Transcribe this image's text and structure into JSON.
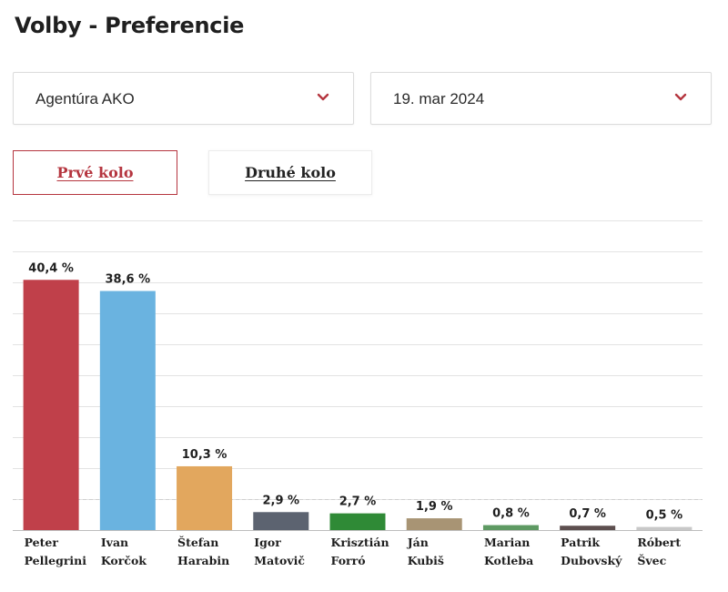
{
  "page": {
    "title": "Volby - Preferencie"
  },
  "filters": {
    "agency": {
      "value": "Agentúra AKO",
      "icon": "chevron-down-icon"
    },
    "date": {
      "value": "19. mar 2024",
      "icon": "chevron-down-icon"
    }
  },
  "tabs": [
    {
      "label": "Prvé kolo",
      "active": true
    },
    {
      "label": "Druhé kolo",
      "active": false
    }
  ],
  "colors": {
    "accent": "#b5353f"
  },
  "chart_data": {
    "type": "bar",
    "categories": [
      [
        "Peter",
        "Pellegrini"
      ],
      [
        "Ivan",
        "Korčok"
      ],
      [
        "Štefan",
        "Harabin"
      ],
      [
        "Igor",
        "Matovič"
      ],
      [
        "Krisztián",
        "Forró"
      ],
      [
        "Ján",
        "Kubiš"
      ],
      [
        "Marian",
        "Kotleba"
      ],
      [
        "Patrik",
        "Dubovský"
      ],
      [
        "Róbert",
        "Švec"
      ]
    ],
    "values": [
      40.4,
      38.6,
      10.3,
      2.9,
      2.7,
      1.9,
      0.8,
      0.7,
      0.5
    ],
    "value_labels": [
      "40,4 %",
      "38,6 %",
      "10,3 %",
      "2,9 %",
      "2,7 %",
      "1,9 %",
      "0,8 %",
      "0,7 %",
      "0,5 %"
    ],
    "colors": [
      "#c0404a",
      "#6ab3e0",
      "#e2a75e",
      "#5c6370",
      "#2f8a36",
      "#a89474",
      "#5e9a63",
      "#5d4f4f",
      "#c8c8c8"
    ],
    "ylim": [
      0,
      50
    ],
    "grid": true,
    "threshold": 5,
    "xlabel": "",
    "ylabel": "",
    "title": ""
  }
}
